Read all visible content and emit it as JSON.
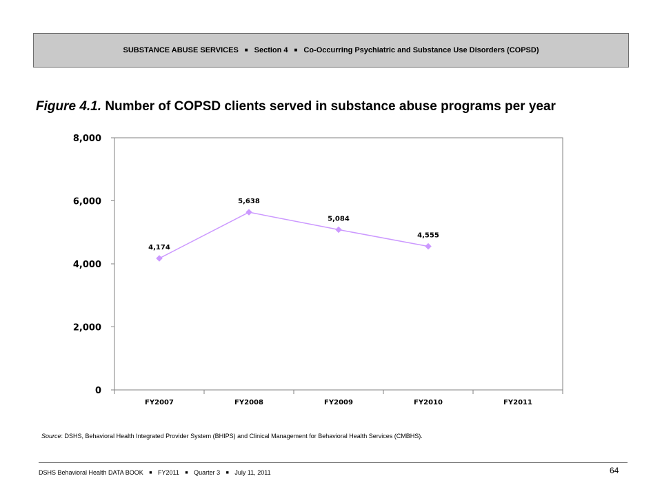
{
  "header": {
    "segments": [
      "SUBSTANCE ABUSE SERVICES",
      "Section 4",
      "Co-Occurring Psychiatric and Substance Use Disorders (COPSD)"
    ],
    "separator": "■"
  },
  "figure": {
    "number": "Figure 4.1.",
    "title": "Number of COPSD clients served in substance abuse programs per year"
  },
  "chart_data": {
    "type": "line",
    "categories": [
      "FY2007",
      "FY2008",
      "FY2009",
      "FY2010",
      "FY2011"
    ],
    "series": [
      {
        "values": [
          4174,
          5638,
          5084,
          4555,
          null
        ],
        "data_labels": [
          "4,174",
          "5,638",
          "5,084",
          "4,555",
          ""
        ]
      }
    ],
    "y_ticks": [
      0,
      2000,
      4000,
      6000,
      8000
    ],
    "y_tick_labels": [
      "0",
      "2,000",
      "4,000",
      "6,000",
      "8,000"
    ],
    "ylim": [
      0,
      8000
    ],
    "grid": false,
    "legend": "none",
    "line_color": "#cc99ff"
  },
  "source": {
    "label": "Source",
    "text": ": DSHS, Behavioral Health Integrated Provider System (BHIPS) and Clinical Management for Behavioral Health Services (CMBHS)."
  },
  "footer": {
    "segments": [
      "DSHS Behavioral Health DATA BOOK",
      "FY2011",
      "Quarter 3",
      "July 11, 2011"
    ],
    "separator": "■",
    "page_number": "64"
  }
}
